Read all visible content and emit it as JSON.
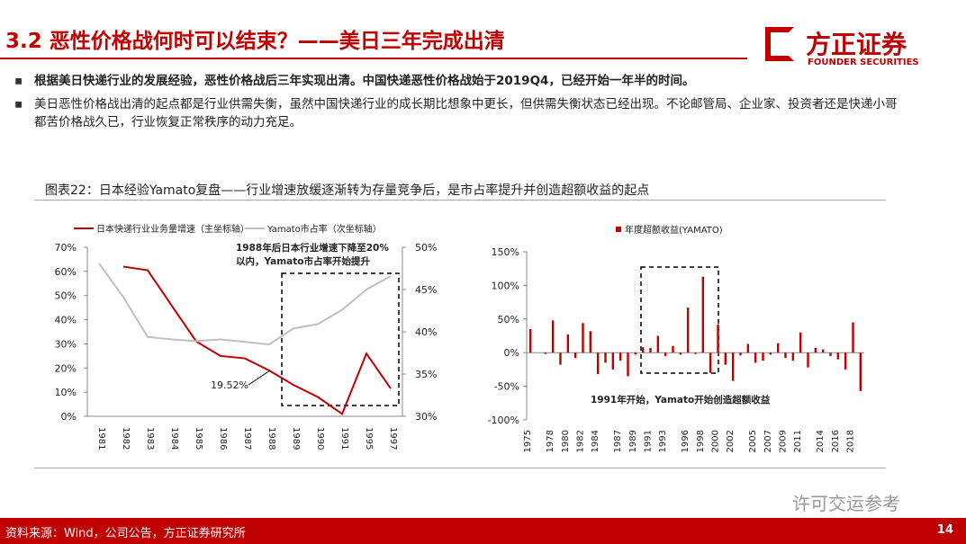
{
  "header": {
    "title": "3.2 恶性价格战何时可以结束？——美日三年完成出清",
    "logo": "方正证券",
    "logo_en": "FOUNDER SECURITIES"
  },
  "bullets": [
    "根据美日快递行业的发展经验，恶性价格战后三年实现出清。中国快递恶性价格战始于2019Q4，已经开始一年半的时间。",
    "美日恶性价格战出清的起点都是行业供需失衡，虽然中国快递行业的成长期比想象中更长，但供需失衡状态已经出现。不论邮管局、企业家、投资者还是快递小哥都苦价格战久已，行业恢复正常秩序的动力充足。"
  ],
  "caption": "图表22：日本经验Yamato复盘——行业增速放缓逐渐转为存量竞争后，是市占率提升并创造超额收益的起点",
  "source": "资料来源：Wind，公司公告，方正证券研究所",
  "page": "14",
  "watermark": "许可交运参考",
  "chart_data": [
    {
      "type": "line",
      "categories": [
        "1981",
        "1982",
        "1983",
        "1984",
        "1985",
        "1986",
        "1987",
        "1988",
        "1989",
        "1990",
        "1991",
        "1995",
        "1997"
      ],
      "series": [
        {
          "name": "日本快递行业业务量增速（主坐标轴）",
          "color": "#c00000",
          "axis": "y",
          "values": [
            null,
            62,
            60.5,
            45.7,
            31,
            25,
            24,
            19,
            13,
            8,
            1,
            26,
            11.5
          ]
        },
        {
          "name": "Yamato市占率（次坐标轴）",
          "color": "#bfbfbf",
          "axis": "y2",
          "values": [
            48.1,
            44.1,
            39.4,
            39.1,
            38.9,
            39.1,
            38.8,
            38.5,
            40.4,
            40.9,
            42.6,
            45,
            46.6
          ]
        }
      ],
      "ylim": [
        0,
        70
      ],
      "yticks": [
        {
          "value": 0,
          "label": "0%"
        },
        {
          "value": 10,
          "label": "10%"
        },
        {
          "value": 20,
          "label": "20%"
        },
        {
          "value": 30,
          "label": "30%"
        },
        {
          "value": 40,
          "label": "40%"
        },
        {
          "value": 50,
          "label": "50%"
        },
        {
          "value": 60,
          "label": "60%"
        },
        {
          "value": 70,
          "label": "70%"
        }
      ],
      "y2lim": [
        30,
        50
      ],
      "y2ticks": [
        {
          "value": 30,
          "label": "30%"
        },
        {
          "value": 35,
          "label": "35%"
        },
        {
          "value": 40,
          "label": "40%"
        },
        {
          "value": 45,
          "label": "45%"
        },
        {
          "value": 50,
          "label": "50%"
        }
      ],
      "annotations": [
        "1988年后日本行业增速下降至20%",
        "以内，Yamato市占率开始提升",
        "19.52%"
      ],
      "legend": "top"
    },
    {
      "type": "bar",
      "categories": [
        "1975",
        null,
        null,
        "1978",
        null,
        "1980",
        null,
        "1982",
        null,
        "1984",
        null,
        null,
        "1987",
        null,
        "1989",
        null,
        "1991",
        null,
        "1993",
        null,
        null,
        "1996",
        null,
        "1998",
        null,
        "2000",
        null,
        "2002",
        null,
        null,
        "2005",
        null,
        "2007",
        null,
        "2009",
        null,
        "2011",
        null,
        null,
        "2014",
        null,
        "2016",
        null,
        "2018",
        null
      ],
      "series": [
        {
          "name": "年度超额收益(YAMATO)",
          "color": "#c00000",
          "values": [
            35,
            0,
            -2,
            48,
            -18,
            27,
            -8,
            44,
            32,
            -32,
            -15,
            -25,
            -12,
            -35,
            -3,
            8,
            7,
            25,
            -5,
            10,
            -3,
            67,
            -2,
            113,
            -30,
            42,
            -18,
            -42,
            -4,
            13,
            -15,
            -12,
            -3,
            14,
            -8,
            -12,
            30,
            -22,
            7,
            5,
            -5,
            -10,
            -25,
            45,
            -57
          ]
        }
      ],
      "ylim": [
        -100,
        150
      ],
      "yticks": [
        {
          "value": -100,
          "label": "-100%"
        },
        {
          "value": -50,
          "label": "-50%"
        },
        {
          "value": 0,
          "label": "0%"
        },
        {
          "value": 50,
          "label": "50%"
        },
        {
          "value": 100,
          "label": "100%"
        },
        {
          "value": 150,
          "label": "150%"
        }
      ],
      "annotations": [
        "1991年开始，Yamato开始创造超额收益"
      ],
      "legend": "top"
    }
  ]
}
